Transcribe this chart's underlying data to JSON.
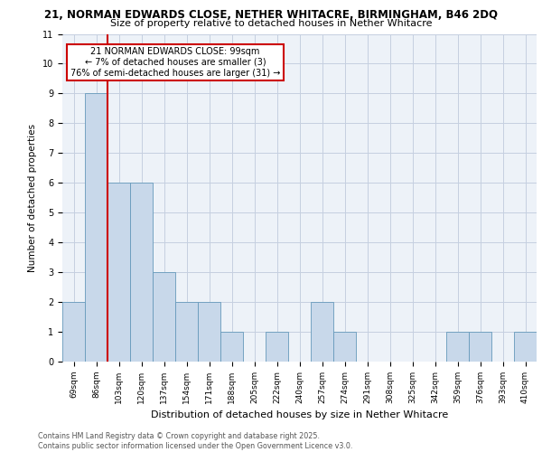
{
  "title_line1": "21, NORMAN EDWARDS CLOSE, NETHER WHITACRE, BIRMINGHAM, B46 2DQ",
  "title_line2": "Size of property relative to detached houses in Nether Whitacre",
  "xlabel": "Distribution of detached houses by size in Nether Whitacre",
  "ylabel": "Number of detached properties",
  "categories": [
    "69sqm",
    "86sqm",
    "103sqm",
    "120sqm",
    "137sqm",
    "154sqm",
    "171sqm",
    "188sqm",
    "205sqm",
    "222sqm",
    "240sqm",
    "257sqm",
    "274sqm",
    "291sqm",
    "308sqm",
    "325sqm",
    "342sqm",
    "359sqm",
    "376sqm",
    "393sqm",
    "410sqm"
  ],
  "values": [
    2,
    9,
    6,
    6,
    3,
    2,
    2,
    1,
    0,
    1,
    0,
    2,
    1,
    0,
    0,
    0,
    0,
    1,
    1,
    0,
    1
  ],
  "bar_color": "#c8d8ea",
  "bar_edge_color": "#6699bb",
  "red_line_x": 1.5,
  "annotation_text": "21 NORMAN EDWARDS CLOSE: 99sqm\n← 7% of detached houses are smaller (3)\n76% of semi-detached houses are larger (31) →",
  "annotation_box_color": "#ffffff",
  "annotation_box_edge": "#cc0000",
  "ylim": [
    0,
    11
  ],
  "yticks": [
    0,
    1,
    2,
    3,
    4,
    5,
    6,
    7,
    8,
    9,
    10,
    11
  ],
  "footer_line1": "Contains HM Land Registry data © Crown copyright and database right 2025.",
  "footer_line2": "Contains public sector information licensed under the Open Government Licence v3.0.",
  "background_color": "#edf2f8",
  "grid_color": "#c5cfe0",
  "title_fontsize": 8.5,
  "subtitle_fontsize": 8.0,
  "tick_fontsize": 6.5,
  "ylabel_fontsize": 7.5,
  "xlabel_fontsize": 8.0,
  "annotation_fontsize": 7.0,
  "footer_fontsize": 5.8
}
